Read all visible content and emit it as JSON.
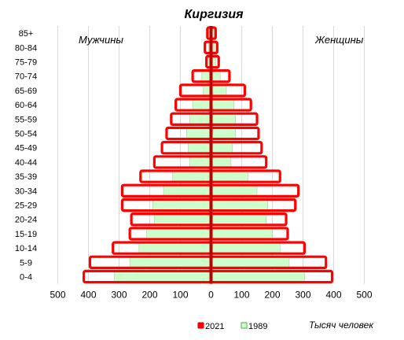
{
  "chart_data": {
    "type": "bar",
    "orientation": "horizontal",
    "title": "Киргизия",
    "left_label": "Мужчины",
    "right_label": "Женщины",
    "unit_label": "Тысяч человек",
    "categories": [
      "0-4",
      "5-9",
      "10-14",
      "15-19",
      "20-24",
      "25-29",
      "30-34",
      "35-39",
      "40-44",
      "45-49",
      "50-54",
      "55-59",
      "60-64",
      "65-69",
      "70-74",
      "75-79",
      "80-84",
      "85+"
    ],
    "x_ticks": [
      "500",
      "400",
      "300",
      "200",
      "100",
      "0",
      "100",
      "200",
      "300",
      "400",
      "500"
    ],
    "xlim": [
      -500,
      500
    ],
    "grid": true,
    "legend_position": "bottom",
    "series": [
      {
        "name": "2021",
        "color": "#ff0000",
        "style": "outline",
        "male": [
          415,
          395,
          320,
          265,
          260,
          290,
          290,
          230,
          185,
          160,
          145,
          130,
          115,
          100,
          60,
          15,
          20,
          12
        ],
        "female": [
          395,
          375,
          305,
          250,
          245,
          275,
          285,
          225,
          180,
          165,
          155,
          150,
          130,
          110,
          60,
          25,
          20,
          15
        ]
      },
      {
        "name": "1989",
        "color": "#ccffcc",
        "style": "fill",
        "male": [
          315,
          265,
          235,
          210,
          185,
          190,
          155,
          125,
          70,
          75,
          80,
          70,
          60,
          25,
          30,
          15,
          8,
          8
        ],
        "female": [
          305,
          255,
          225,
          200,
          180,
          185,
          150,
          120,
          65,
          70,
          80,
          80,
          75,
          50,
          30,
          15,
          10,
          10
        ]
      }
    ]
  }
}
